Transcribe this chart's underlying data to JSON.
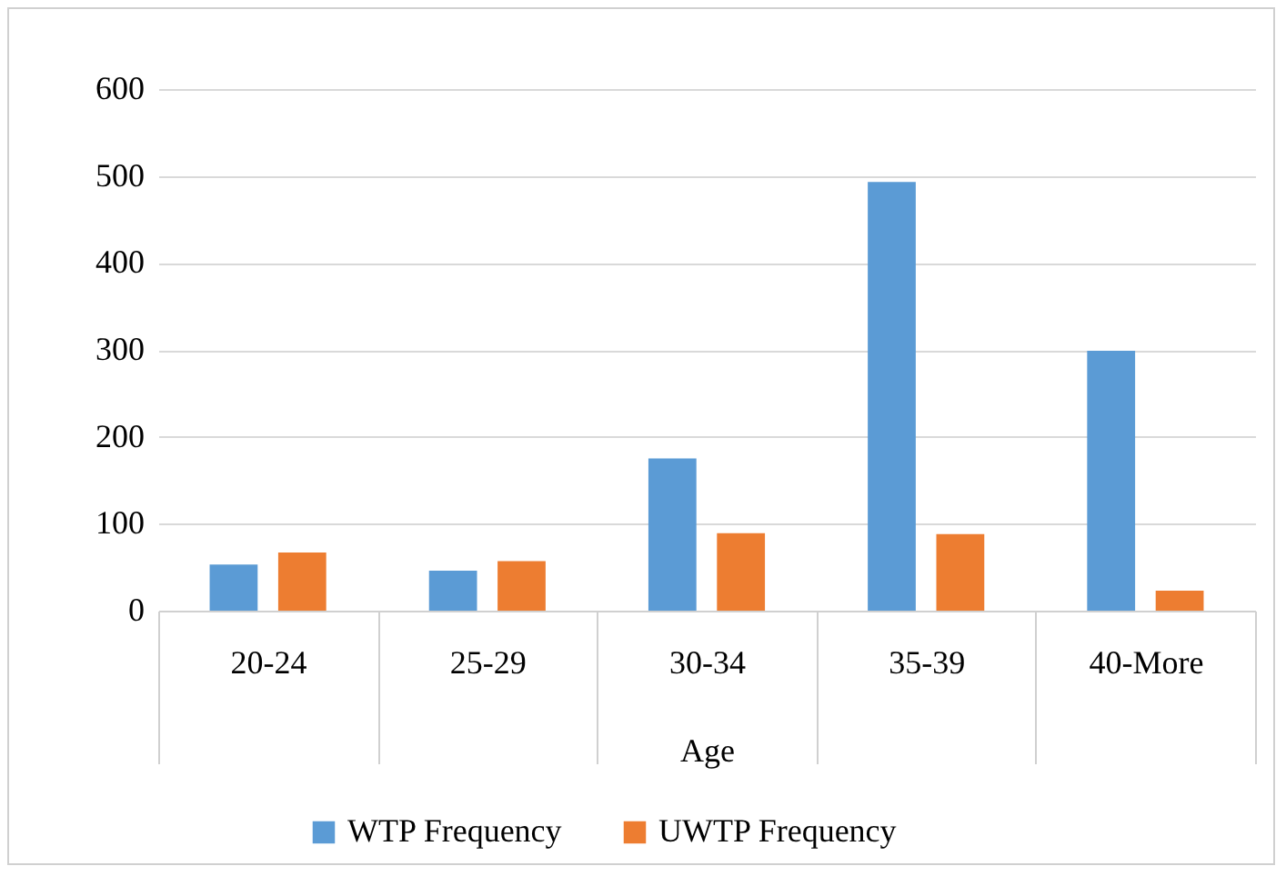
{
  "chart_data": {
    "type": "bar",
    "xlabel": "Age",
    "categories": [
      "20-24",
      "25-29",
      "30-34",
      "35-39",
      "40-More"
    ],
    "series": [
      {
        "name": "WTP Frequency",
        "color": "#5b9bd5",
        "values": [
          53,
          46,
          175,
          493,
          299
        ]
      },
      {
        "name": "UWTP Frequency",
        "color": "#ed7d31",
        "values": [
          67,
          57,
          89,
          88,
          23
        ]
      }
    ],
    "ylim": [
      0,
      600
    ],
    "yticks": [
      0,
      100,
      200,
      300,
      400,
      500,
      600
    ],
    "grid": "y",
    "legend": "bottom"
  }
}
